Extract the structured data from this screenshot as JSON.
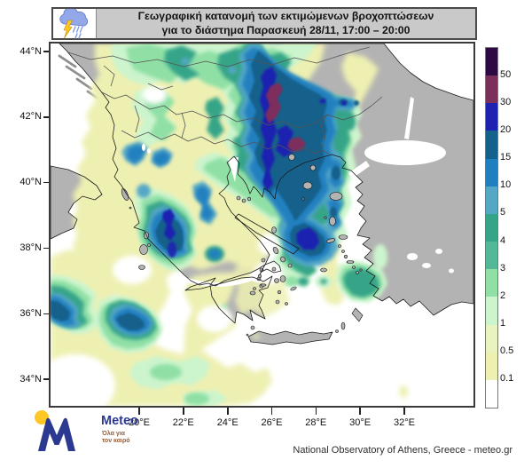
{
  "header": {
    "title_line1": "Γεωγραφική κατανομή των εκτιμώμενων βροχοπτώσεων",
    "title_line2": "για το διάστημα Παρασκευή 28/11, 17:00 – 20:00"
  },
  "legend": {
    "labels": [
      "50",
      "30",
      "20",
      "15",
      "10",
      "5",
      "4",
      "3",
      "2",
      "1",
      "0.5",
      "0.1"
    ],
    "colors": [
      "#2e0a45",
      "#7d2f5c",
      "#1e22b0",
      "#14618c",
      "#2080bf",
      "#55a7c6",
      "#35a487",
      "#52b897",
      "#90e0a6",
      "#ccf4cd",
      "#e8f3bf",
      "#eef0b2",
      "#ffffff"
    ]
  },
  "axes": {
    "y_ticks": [
      "44°N",
      "42°N",
      "40°N",
      "38°N",
      "36°N",
      "34°N"
    ],
    "x_ticks": [
      "20°E",
      "22°E",
      "24°E",
      "26°E",
      "28°E",
      "30°E",
      "32°E"
    ]
  },
  "logo": {
    "name": "Meteo",
    "tagline_line1": "Όλα για",
    "tagline_line2": "τον καιρό"
  },
  "attribution": "National Observatory of Athens, Greece - meteo.gr",
  "colors": {
    "land": "#b3b3b3",
    "sea": "#ffffff",
    "coastline": "#1c1c1c",
    "country_border": "#545454",
    "map_frame": "#3a3a3a",
    "titlebar_bg": "#c9c9c9",
    "logo_blue": "#2b3990",
    "logo_yellow": "#ffc726",
    "tagline_color": "#9b5d35",
    "cloud_blue": "#92a8e8",
    "lightning_yellow": "#ffc81e",
    "rain_blue": "#7f9ae0"
  },
  "chart_data": {
    "type": "heatmap",
    "title": "Γεωγραφική κατανομή των εκτιμώμενων βροχοπτώσεων για το διάστημα Παρασκευή 28/11, 17:00 – 20:00",
    "legend_values_mm": [
      50,
      30,
      20,
      15,
      10,
      5,
      4,
      3,
      2,
      1,
      0.5,
      0.1
    ],
    "lon_ticks_deg_east": [
      20,
      22,
      24,
      26,
      28,
      30,
      32
    ],
    "lat_ticks_deg_north": [
      44,
      42,
      40,
      38,
      36,
      34
    ],
    "legend_position": "right",
    "notes_visible_maxima": "heaviest precipitation (>30-50mm) over NE Greece; strong cells over Epirus, Ionian Sea and Euboea"
  }
}
